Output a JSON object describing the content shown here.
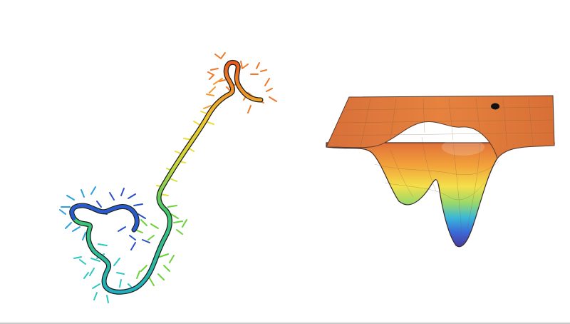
{
  "scene": {
    "protein": {
      "icon": "protein-backbone-icon",
      "color_gradient": [
        "#1f3fb0",
        "#1e88d6",
        "#22c3c8",
        "#3ed26a",
        "#9be03a",
        "#f0e23a",
        "#f5a020",
        "#e8531c"
      ]
    },
    "energy_surface": {
      "icon": "energy-landscape-icon",
      "top_color": "#e07a3c",
      "low_color": "#4a3aa8",
      "marker_color": "#111111"
    }
  }
}
